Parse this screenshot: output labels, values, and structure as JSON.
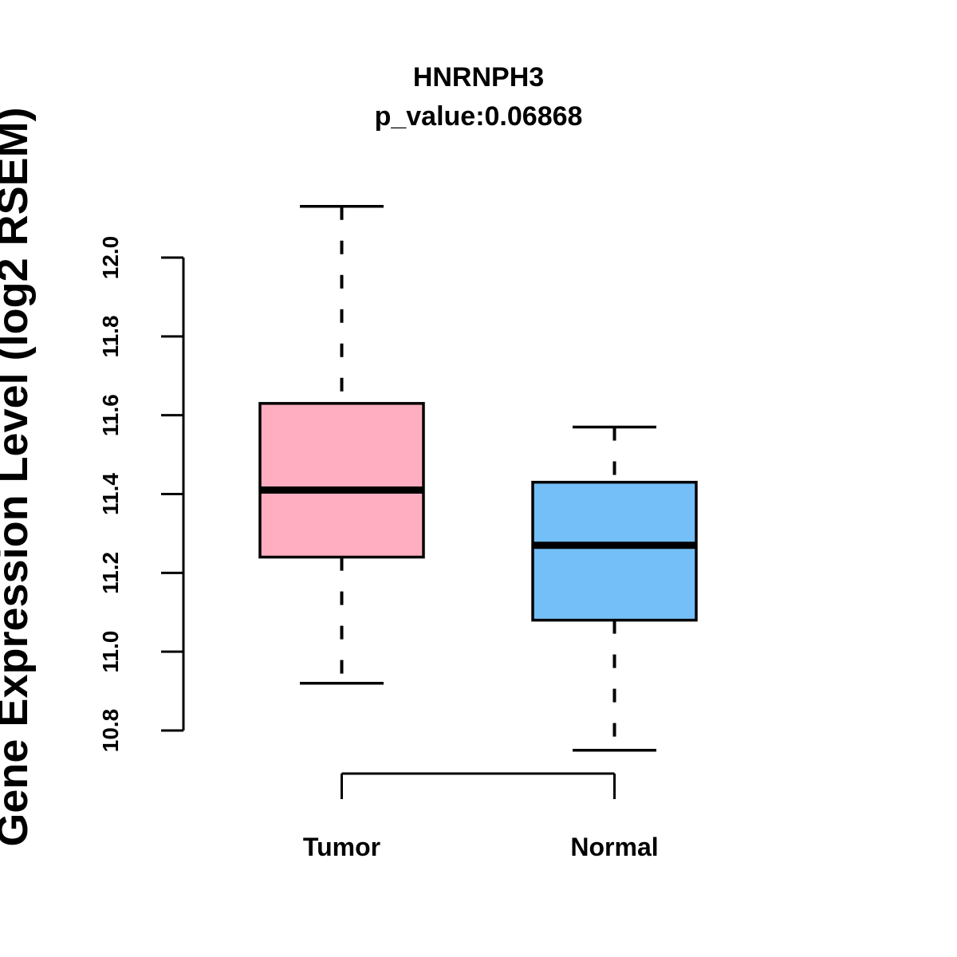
{
  "figure": {
    "background": "#FFFFFF"
  },
  "chart_data": {
    "type": "boxplot",
    "title": "HNRNPH3",
    "subtitle": "p_value:0.06868",
    "xlabel": "",
    "ylabel": "Gene Expression Level (log2 RSEM)",
    "ylim": [
      10.8,
      12.0
    ],
    "ytick_labels": [
      "10.8",
      "11.0",
      "11.2",
      "11.4",
      "11.6",
      "11.8",
      "12.0"
    ],
    "grid": "off",
    "legend": "none",
    "categories": [
      "Tumor",
      "Normal"
    ],
    "series": [
      {
        "name": "Tumor",
        "fill": "#FFAEC1",
        "stroke": "#000000",
        "whisker_low": 10.92,
        "q1": 11.24,
        "median": 11.41,
        "q3": 11.63,
        "whisker_high": 12.13
      },
      {
        "name": "Normal",
        "fill": "#74BFF7",
        "stroke": "#000000",
        "whisker_low": 10.75,
        "q1": 11.08,
        "median": 11.27,
        "q3": 11.43,
        "whisker_high": 11.57
      }
    ],
    "colors": {
      "axis": "#000000",
      "text": "#000000"
    }
  }
}
